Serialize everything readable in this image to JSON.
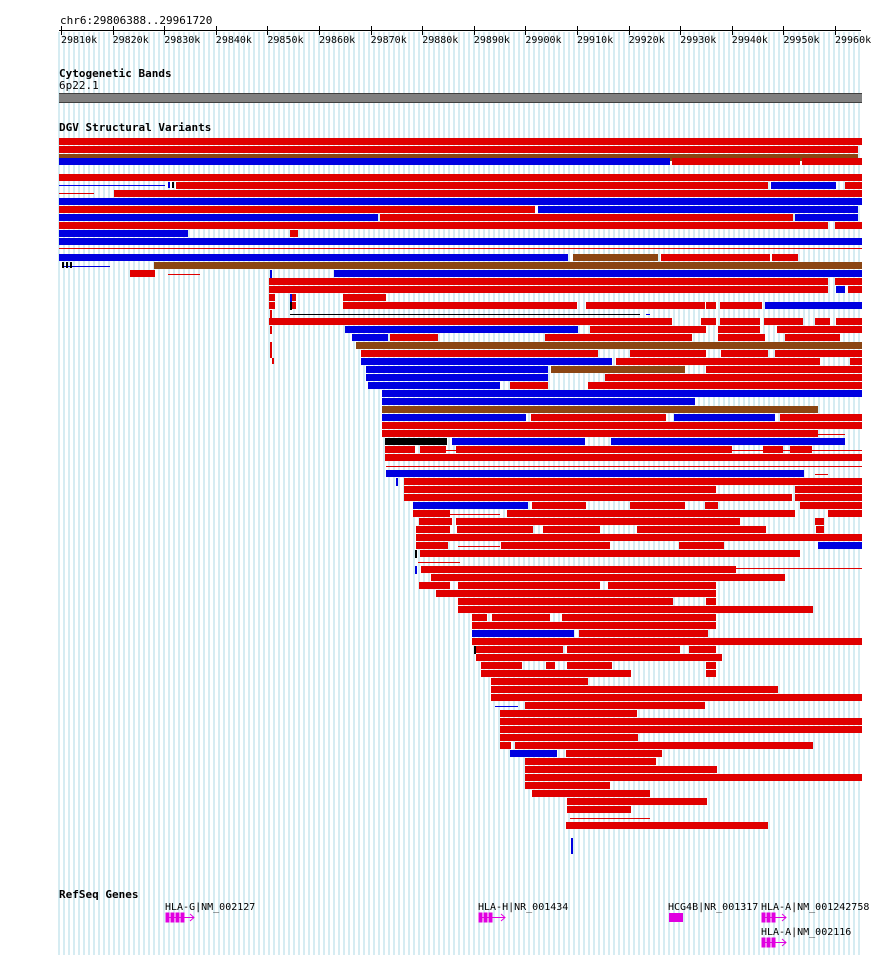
{
  "ruler": {
    "position": "chr6:29806388..29961720",
    "ticks": [
      "29810k",
      "29820k",
      "29830k",
      "29840k",
      "29850k",
      "29860k",
      "29870k",
      "29880k",
      "29890k",
      "29900k",
      "29910k",
      "29920k",
      "29930k",
      "29940k",
      "29950k",
      "29960k"
    ]
  },
  "tracks": {
    "cytoband_title": "Cytogenetic Bands",
    "cytoband_name": "6p22.1",
    "dgv_title": "DGV Structural Variants",
    "refseq_title": "RefSeq Genes"
  },
  "colors": {
    "loss": "#e00000",
    "gain": "#0000e0",
    "gain_loss": "#8b4513",
    "inversion": "#000000",
    "gene": "#e000e0",
    "grid": "#add8e6"
  },
  "genes": [
    {
      "label": "HLA-G|NM_002127"
    },
    {
      "label": "HLA-H|NR_001434"
    },
    {
      "label": "HCG4B|NR_001317"
    },
    {
      "label": "HLA-A|NM_001242758"
    },
    {
      "label": "HLA-A|NM_002116"
    }
  ]
}
